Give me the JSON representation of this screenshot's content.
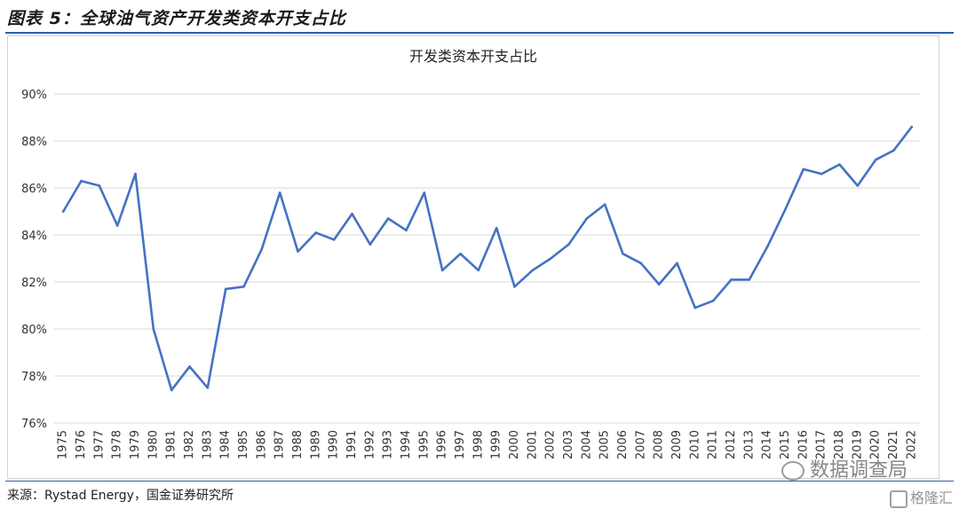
{
  "figure": {
    "title": "图表 5：全球油气资产开发类资本开支占比",
    "source": "来源：Rystad Energy，国金证券研究所"
  },
  "watermarks": {
    "account": "数据调查局",
    "logo_text": "格隆汇"
  },
  "chart_data": {
    "type": "line",
    "title": "开发类资本开支占比",
    "xlabel": "",
    "ylabel": "",
    "ylim": [
      76,
      90
    ],
    "yticks": [
      76,
      78,
      80,
      82,
      84,
      86,
      88,
      90
    ],
    "ytick_labels": [
      "76%",
      "78%",
      "80%",
      "82%",
      "84%",
      "86%",
      "88%",
      "90%"
    ],
    "grid": true,
    "legend": "none",
    "line_color": "#4472c4",
    "x": [
      "1975",
      "1976",
      "1977",
      "1978",
      "1979",
      "1980",
      "1981",
      "1982",
      "1983",
      "1984",
      "1985",
      "1986",
      "1987",
      "1988",
      "1989",
      "1990",
      "1991",
      "1992",
      "1993",
      "1994",
      "1995",
      "1996",
      "1997",
      "1998",
      "1999",
      "2000",
      "2001",
      "2002",
      "2003",
      "2004",
      "2005",
      "2006",
      "2007",
      "2008",
      "2009",
      "2010",
      "2011",
      "2012",
      "2013",
      "2014",
      "2015",
      "2016",
      "2017",
      "2018",
      "2019",
      "2020",
      "2021",
      "2022"
    ],
    "series": [
      {
        "name": "",
        "values": [
          85.0,
          86.3,
          86.1,
          84.4,
          86.6,
          80.0,
          77.4,
          78.4,
          77.5,
          81.7,
          81.8,
          83.4,
          85.8,
          83.3,
          84.1,
          83.8,
          84.9,
          83.6,
          84.7,
          84.2,
          85.8,
          82.5,
          83.2,
          82.5,
          84.3,
          81.8,
          82.5,
          83.0,
          83.6,
          84.7,
          85.3,
          83.2,
          82.8,
          81.9,
          82.8,
          80.9,
          81.2,
          82.1,
          82.1,
          83.5,
          85.1,
          86.8,
          86.6,
          87.0,
          86.1,
          87.2,
          87.6,
          88.6
        ]
      }
    ]
  }
}
